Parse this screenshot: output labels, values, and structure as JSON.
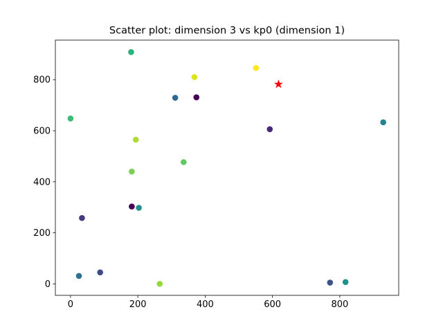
{
  "chart_data": {
    "type": "scatter",
    "title": "Scatter plot: dimension 3 vs kp0 (dimension 1)",
    "xlabel": "",
    "ylabel": "",
    "xlim": [
      -45,
      975
    ],
    "ylim": [
      -45,
      955
    ],
    "x_ticks": [
      0,
      200,
      400,
      600,
      800
    ],
    "y_ticks": [
      0,
      200,
      400,
      600,
      800
    ],
    "grid": false,
    "legend": "none",
    "points": [
      {
        "x": 180,
        "y": 908,
        "color": "#2db27d"
      },
      {
        "x": 368,
        "y": 810,
        "color": "#dde318"
      },
      {
        "x": 551,
        "y": 846,
        "color": "#fde725"
      },
      {
        "x": 311,
        "y": 729,
        "color": "#31688e"
      },
      {
        "x": 374,
        "y": 731,
        "color": "#440154"
      },
      {
        "x": 0,
        "y": 648,
        "color": "#3bbb75"
      },
      {
        "x": 592,
        "y": 606,
        "color": "#482878"
      },
      {
        "x": 929,
        "y": 633,
        "color": "#26828e"
      },
      {
        "x": 194,
        "y": 565,
        "color": "#addc30"
      },
      {
        "x": 336,
        "y": 477,
        "color": "#5ec962"
      },
      {
        "x": 182,
        "y": 440,
        "color": "#7ad151"
      },
      {
        "x": 182,
        "y": 303,
        "color": "#440154"
      },
      {
        "x": 203,
        "y": 298,
        "color": "#21918c"
      },
      {
        "x": 34,
        "y": 258,
        "color": "#443a83"
      },
      {
        "x": 88,
        "y": 45,
        "color": "#3e4989"
      },
      {
        "x": 25,
        "y": 31,
        "color": "#2c728e"
      },
      {
        "x": 265,
        "y": 0,
        "color": "#95d840"
      },
      {
        "x": 771,
        "y": 5,
        "color": "#3b528b"
      },
      {
        "x": 817,
        "y": 7,
        "color": "#21918c"
      }
    ],
    "highlight": {
      "x": 618,
      "y": 782,
      "marker": "star",
      "color": "#ff0000"
    }
  }
}
